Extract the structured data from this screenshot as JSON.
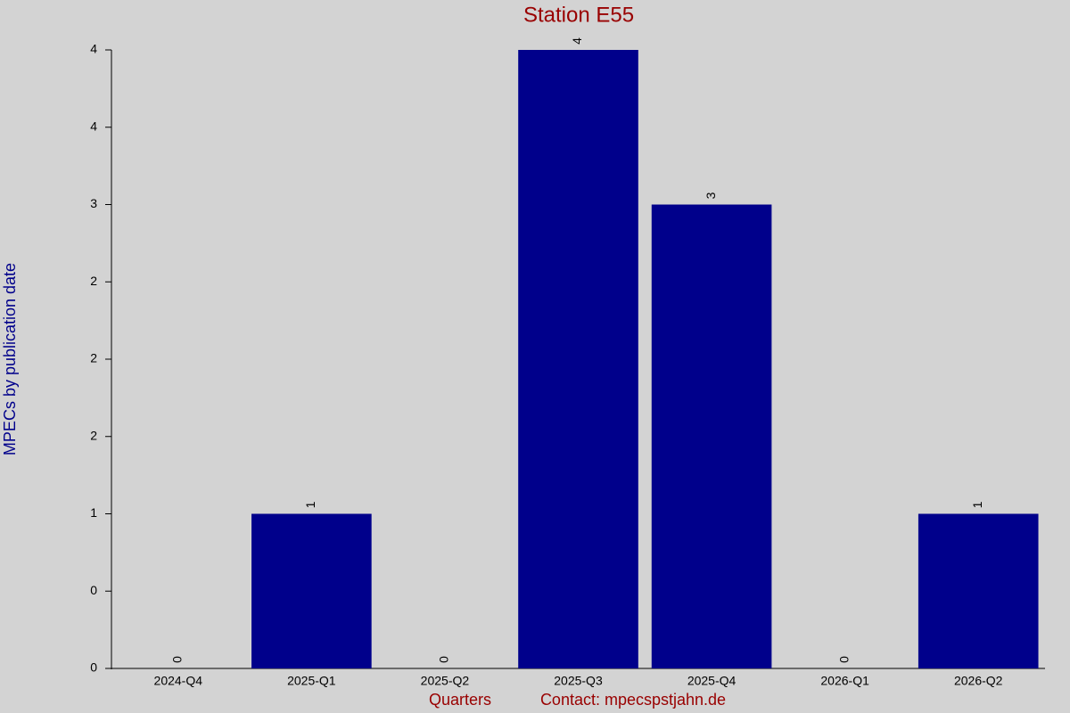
{
  "chart_data": {
    "type": "bar",
    "title": "Station E55",
    "x_label": "Quarters",
    "y_label": "MPECs by publication date",
    "note": "Contact: mpecspstjahn.de",
    "categories": [
      "2024-Q4",
      "2025-Q1",
      "2025-Q2",
      "2025-Q3",
      "2025-Q4",
      "2026-Q1",
      "2026-Q2"
    ],
    "values": [
      0,
      1,
      0,
      4,
      3,
      0,
      1
    ],
    "color": "#00008b",
    "ylim": [
      0,
      4
    ],
    "yticks": [
      0,
      {
        "value": 0.5,
        "label": "0"
      },
      1,
      {
        "value": 1.5,
        "label": "2"
      },
      2,
      {
        "value": 2.5,
        "label": "2"
      },
      3,
      {
        "value": 3.5,
        "label": "4"
      },
      4
    ]
  }
}
